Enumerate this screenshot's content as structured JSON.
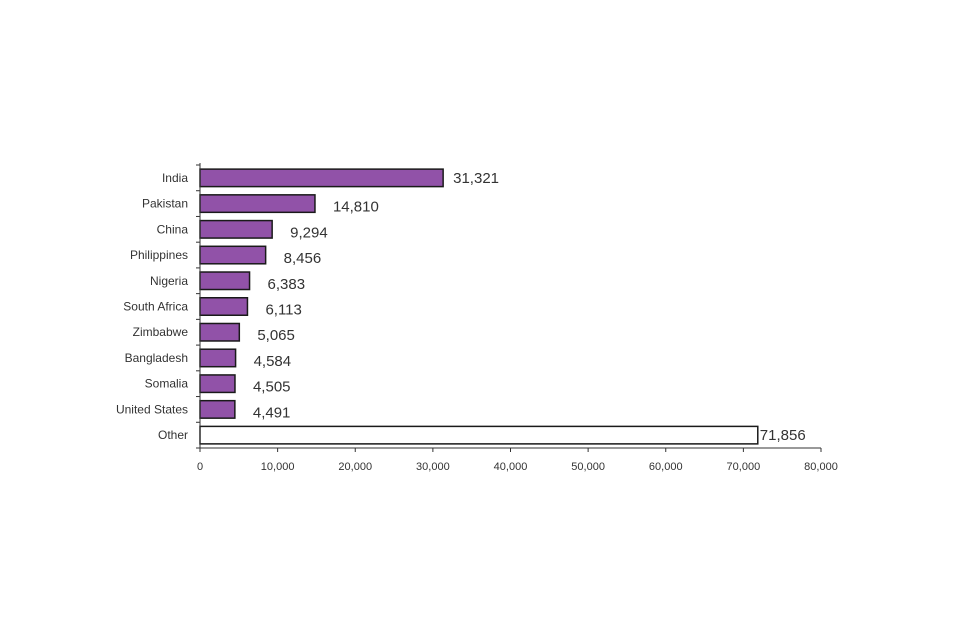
{
  "chart_data": {
    "type": "bar",
    "orientation": "horizontal",
    "categories": [
      "India",
      "Pakistan",
      "China",
      "Philippines",
      "Nigeria",
      "South Africa",
      "Zimbabwe",
      "Bangladesh",
      "Somalia",
      "United States",
      "Other"
    ],
    "values": [
      31321,
      14810,
      9294,
      8456,
      6383,
      6113,
      5065,
      4584,
      4505,
      4491,
      71856
    ],
    "data_labels": [
      "31,321",
      "14,810",
      "9,294",
      "8,456",
      "6,383",
      "6,113",
      "5,065",
      "4,584",
      "4,505",
      "4,491",
      "71,856"
    ],
    "xlim": [
      0,
      80000
    ],
    "x_ticks": [
      0,
      10000,
      20000,
      30000,
      40000,
      50000,
      60000,
      70000,
      80000
    ],
    "x_tick_labels": [
      "0",
      "10,000",
      "20,000",
      "30,000",
      "40,000",
      "50,000",
      "60,000",
      "70,000",
      "80,000"
    ],
    "title": "",
    "xlabel": "",
    "ylabel": "",
    "grid": false,
    "legend": "none",
    "colors": {
      "bar": "#9152a8",
      "highlight_bar": "#ffffff",
      "bar_stroke": "#1a1a1a",
      "axis": "#333333"
    },
    "highlight_category": "Other"
  }
}
